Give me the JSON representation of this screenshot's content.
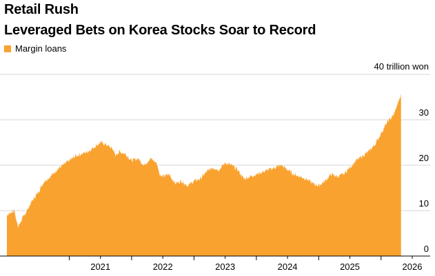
{
  "chart_data": {
    "type": "area",
    "title": "Retail Rush",
    "subtitle": "Leveraged Bets on Korea Stocks Soar to Record",
    "legend": [
      {
        "name": "Margin loans",
        "color": "#f9a22f"
      }
    ],
    "y_unit_label": "40 trillion won",
    "ylim": [
      0,
      40
    ],
    "yticks": [
      0,
      10,
      20,
      30
    ],
    "xlim": [
      2020.0,
      2026.5
    ],
    "xticks": [
      "2021",
      "2022",
      "2023",
      "2024",
      "2025",
      "2026"
    ],
    "grid": "horizontal",
    "legend_position": "top-left",
    "series": [
      {
        "name": "Margin loans",
        "x": [
          2020.0,
          2020.05,
          2020.12,
          2020.15,
          2020.18,
          2020.22,
          2020.3,
          2020.4,
          2020.5,
          2020.6,
          2020.7,
          2020.8,
          2020.9,
          2021.0,
          2021.1,
          2021.2,
          2021.3,
          2021.4,
          2021.5,
          2021.6,
          2021.7,
          2021.75,
          2021.8,
          2021.9,
          2022.0,
          2022.1,
          2022.2,
          2022.3,
          2022.4,
          2022.45,
          2022.5,
          2022.6,
          2022.7,
          2022.8,
          2022.9,
          2023.0,
          2023.1,
          2023.2,
          2023.3,
          2023.4,
          2023.5,
          2023.6,
          2023.7,
          2023.8,
          2023.9,
          2024.0,
          2024.1,
          2024.2,
          2024.3,
          2024.4,
          2024.5,
          2024.6,
          2024.7,
          2024.8,
          2024.9,
          2025.0,
          2025.1,
          2025.2,
          2025.3,
          2025.4,
          2025.5,
          2025.6,
          2025.7,
          2025.8,
          2025.9,
          2026.0,
          2026.1,
          2026.2,
          2026.28,
          2026.32
        ],
        "values": [
          9.0,
          9.5,
          10.0,
          8.0,
          6.5,
          7.5,
          9.5,
          12.0,
          14.0,
          16.5,
          17.5,
          19.0,
          20.0,
          21.0,
          22.0,
          22.5,
          23.0,
          24.0,
          25.0,
          24.5,
          23.5,
          22.0,
          23.0,
          22.5,
          21.0,
          21.5,
          20.0,
          21.5,
          20.5,
          18.0,
          17.5,
          18.0,
          16.0,
          16.5,
          15.5,
          16.5,
          17.0,
          18.5,
          19.5,
          19.0,
          20.5,
          20.0,
          19.0,
          17.0,
          17.5,
          18.0,
          18.5,
          19.0,
          19.5,
          20.0,
          19.0,
          18.0,
          17.5,
          17.0,
          16.0,
          15.5,
          16.5,
          18.0,
          17.5,
          18.0,
          19.5,
          21.0,
          22.0,
          23.0,
          24.5,
          27.0,
          29.5,
          31.0,
          34.0,
          35.5
        ]
      }
    ]
  }
}
